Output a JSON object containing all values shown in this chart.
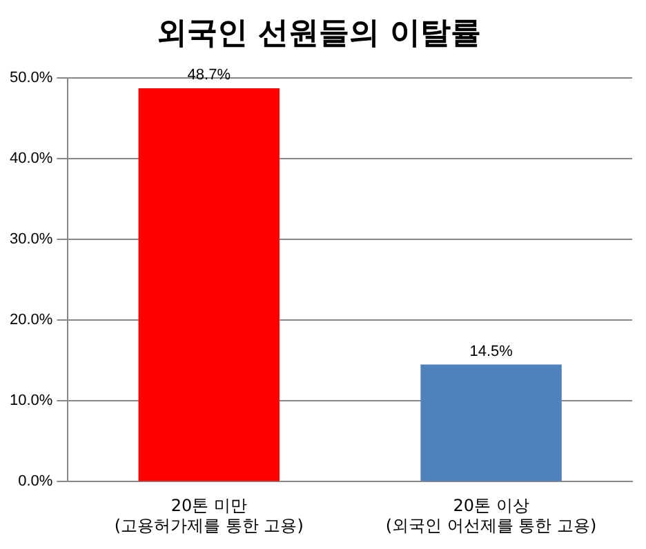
{
  "chart_data": {
    "type": "bar",
    "title": "외국인 선원들의 이탈률",
    "categories": [
      "20톤 미만\n(고용허가제를 통한 고용)",
      "20톤 이상\n(외국인 어선제를 통한 고용)"
    ],
    "values": [
      48.7,
      14.5
    ],
    "colors": [
      "#ff0000",
      "#4f81bd"
    ],
    "value_labels": [
      "48.7%",
      "14.5%"
    ],
    "ylim": [
      0,
      50
    ],
    "yticks": [
      {
        "value": 0,
        "label": "0.0%"
      },
      {
        "value": 10,
        "label": "10.0%"
      },
      {
        "value": 20,
        "label": "20.0%"
      },
      {
        "value": 30,
        "label": "30.0%"
      },
      {
        "value": 40,
        "label": "40.0%"
      },
      {
        "value": 50,
        "label": "50.0%"
      }
    ],
    "grid": "y",
    "legend": false
  }
}
